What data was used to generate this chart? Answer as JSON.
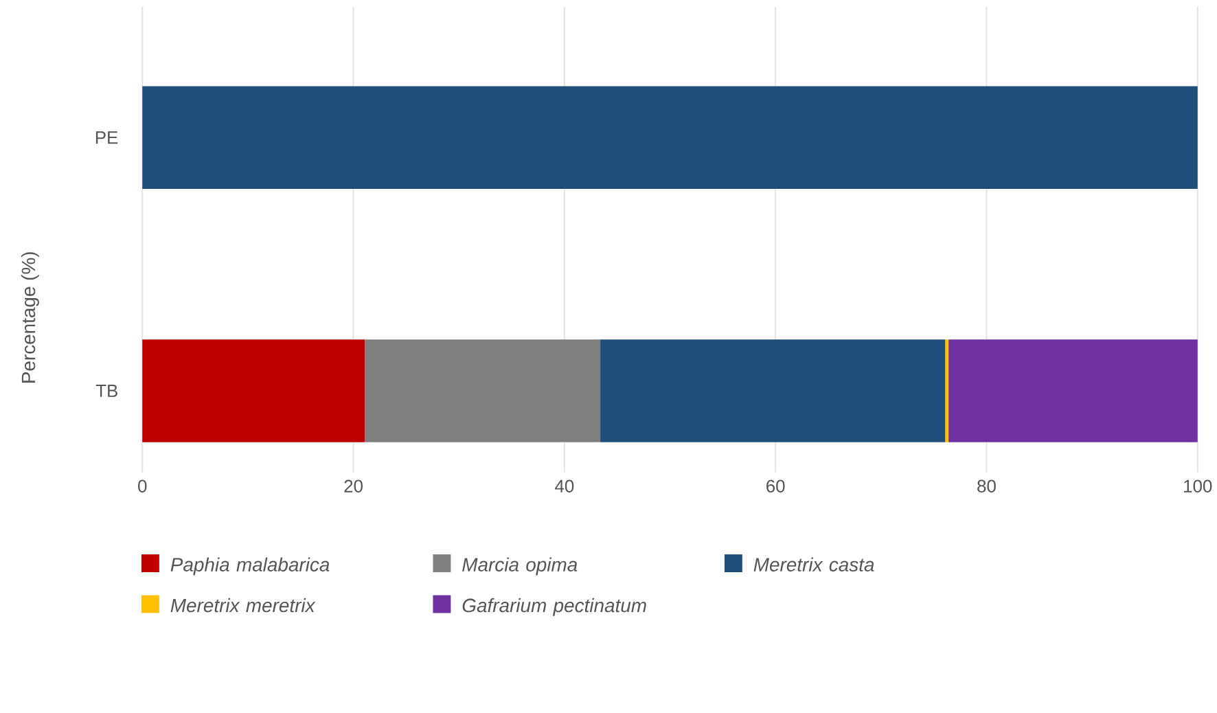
{
  "chart_data": {
    "type": "bar",
    "orientation": "horizontal",
    "stacked": true,
    "ylabel": "Percentage (%)",
    "categories": [
      "PE",
      "TB"
    ],
    "series": [
      {
        "name": "Paphia malabarica",
        "color": "#c00000",
        "values": [
          null,
          21.1
        ]
      },
      {
        "name": "Marcia opima",
        "color": "#7f7f7f",
        "values": [
          null,
          22.3
        ]
      },
      {
        "name": "Meretrix casta",
        "color": "#1f4e79",
        "values": [
          100,
          32.7
        ]
      },
      {
        "name": "Meretrix meretrix",
        "color": "#ffc000",
        "values": [
          null,
          0.3
        ]
      },
      {
        "name": "Gafrarium pectinatum",
        "color": "#7030a0",
        "values": [
          null,
          23.6
        ]
      }
    ],
    "xlim": [
      0,
      100
    ],
    "xticks": [
      0,
      20,
      40,
      60,
      80,
      100
    ],
    "grid": "x",
    "legend": "bottom"
  }
}
